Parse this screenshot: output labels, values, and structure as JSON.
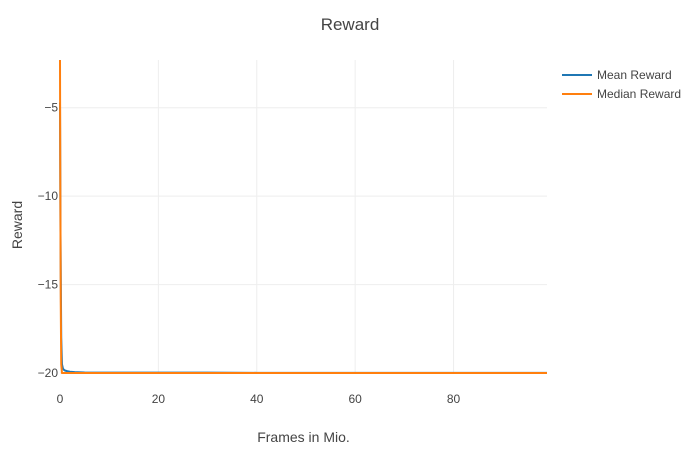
{
  "chart_data": {
    "type": "line",
    "title": "Reward",
    "xlabel": "Frames in Mio.",
    "ylabel": "Reward",
    "xlim": [
      0,
      99
    ],
    "ylim": [
      -20,
      -2.3
    ],
    "x_ticks": [
      0,
      20,
      40,
      60,
      80
    ],
    "x_tick_labels": [
      "0",
      "20",
      "40",
      "60",
      "80"
    ],
    "y_ticks": [
      -20,
      -15,
      -10,
      -5
    ],
    "y_tick_labels": [
      "−20",
      "−15",
      "−10",
      "−5"
    ],
    "grid": true,
    "legend_position": "top-right",
    "series": [
      {
        "name": "Mean Reward",
        "color": "#1f77b4",
        "x": [
          0,
          0.1,
          0.25,
          0.4,
          0.6,
          0.8,
          1,
          1.5,
          2,
          3,
          5,
          10,
          20,
          30,
          40,
          50,
          60,
          70,
          80,
          90,
          99
        ],
        "y": [
          -4.7,
          -12,
          -18,
          -19.5,
          -19.75,
          -19.82,
          -19.86,
          -19.9,
          -19.93,
          -19.95,
          -19.97,
          -19.98,
          -19.98,
          -19.98,
          -19.99,
          -19.99,
          -19.99,
          -19.99,
          -19.99,
          -19.99,
          -19.99
        ]
      },
      {
        "name": "Median Reward",
        "color": "#ff7f0e",
        "x": [
          0,
          0.05,
          0.15,
          0.25,
          0.4,
          0.6,
          1,
          2,
          5,
          10,
          20,
          30,
          40,
          50,
          60,
          70,
          80,
          90,
          99
        ],
        "y": [
          -2.3,
          -8,
          -16,
          -19.5,
          -20,
          -20,
          -20,
          -20,
          -20,
          -20,
          -20,
          -20,
          -20,
          -20,
          -20,
          -20,
          -20,
          -20,
          -20
        ]
      }
    ]
  }
}
